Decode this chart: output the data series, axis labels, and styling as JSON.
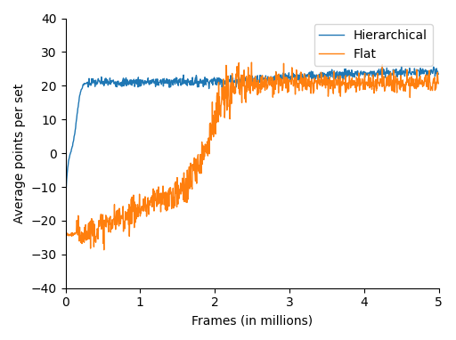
{
  "title": "",
  "xlabel": "Frames (in millions)",
  "ylabel": "Average points per set",
  "xlim": [
    0,
    5
  ],
  "ylim": [
    -40,
    40
  ],
  "yticks": [
    -40,
    -30,
    -20,
    -10,
    0,
    10,
    20,
    30,
    40
  ],
  "xticks": [
    0,
    1,
    2,
    3,
    4,
    5
  ],
  "hierarchical_color": "#1f77b4",
  "flat_color": "#ff7f0e",
  "hierarchical_label": "Hierarchical",
  "flat_label": "Flat",
  "line_width": 1.0,
  "seed": 7,
  "n_points": 1000
}
